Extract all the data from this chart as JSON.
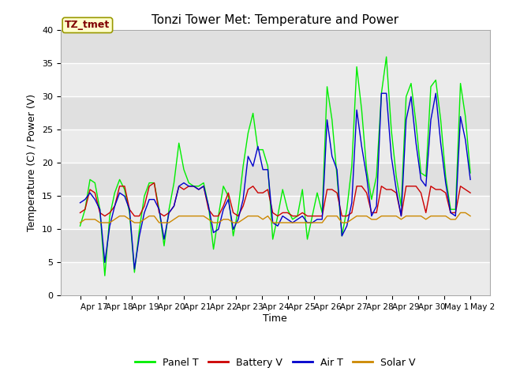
{
  "title": "Tonzi Tower Met: Temperature and Power",
  "xlabel": "Time",
  "ylabel": "Temperature (C) / Power (V)",
  "ylim": [
    0,
    40
  ],
  "yticks": [
    0,
    5,
    10,
    15,
    20,
    25,
    30,
    35,
    40
  ],
  "x_labels": [
    "Apr 17",
    "Apr 18",
    "Apr 19",
    "Apr 20",
    "Apr 21",
    "Apr 22",
    "Apr 23",
    "Apr 24",
    "Apr 25",
    "Apr 26",
    "Apr 27",
    "Apr 28",
    "Apr 29",
    "Apr 30",
    "May 1",
    "May 2"
  ],
  "annotation_text": "TZ_tmet",
  "annotation_color": "#800000",
  "annotation_bg": "#ffffcc",
  "annotation_border": "#999900",
  "bg_color_light": "#e8e8e8",
  "bg_color_dark": "#d8d8d8",
  "legend_entries": [
    "Panel T",
    "Battery V",
    "Air T",
    "Solar V"
  ],
  "legend_colors": [
    "#00ee00",
    "#cc0000",
    "#0000cc",
    "#cc8800"
  ],
  "line_colors": {
    "panel_t": "#00ee00",
    "battery_v": "#cc0000",
    "air_t": "#0000cc",
    "solar_v": "#cc8800"
  },
  "panel_t": [
    10.5,
    13.0,
    17.5,
    17.0,
    13.0,
    3.0,
    12.0,
    15.5,
    17.5,
    16.0,
    12.5,
    3.5,
    10.0,
    15.0,
    17.0,
    17.0,
    13.0,
    7.5,
    13.0,
    17.0,
    23.0,
    19.0,
    17.0,
    16.5,
    16.5,
    17.0,
    13.5,
    7.0,
    12.0,
    16.5,
    15.0,
    9.0,
    13.0,
    19.5,
    24.5,
    27.5,
    22.0,
    22.0,
    19.5,
    8.5,
    12.0,
    16.0,
    13.0,
    11.5,
    12.0,
    16.0,
    8.5,
    12.0,
    15.5,
    12.5,
    31.5,
    26.5,
    18.0,
    9.0,
    13.0,
    19.5,
    34.5,
    28.0,
    19.0,
    14.5,
    18.0,
    30.5,
    36.0,
    25.0,
    18.0,
    13.5,
    30.0,
    32.0,
    26.0,
    18.5,
    18.0,
    31.5,
    32.5,
    26.5,
    18.0,
    13.0,
    13.0,
    32.0,
    27.0,
    18.5
  ],
  "battery_v": [
    12.5,
    13.0,
    16.0,
    15.5,
    12.5,
    12.0,
    12.5,
    13.5,
    16.5,
    16.5,
    13.0,
    12.0,
    12.0,
    13.5,
    16.5,
    17.0,
    12.5,
    12.0,
    12.5,
    13.5,
    16.5,
    16.0,
    16.5,
    16.5,
    16.0,
    16.5,
    13.0,
    12.0,
    12.0,
    13.5,
    15.5,
    12.5,
    12.0,
    13.5,
    16.0,
    16.5,
    15.5,
    15.5,
    16.0,
    12.5,
    12.0,
    12.5,
    12.5,
    12.0,
    12.0,
    12.5,
    12.0,
    12.0,
    12.0,
    12.0,
    16.0,
    16.0,
    15.5,
    12.0,
    12.0,
    12.5,
    16.5,
    16.5,
    15.5,
    12.5,
    12.5,
    16.5,
    16.0,
    16.0,
    15.5,
    12.0,
    16.5,
    16.5,
    16.5,
    15.5,
    12.5,
    16.5,
    16.0,
    16.0,
    15.5,
    12.5,
    12.5,
    16.5,
    16.0,
    15.5
  ],
  "air_t": [
    14.0,
    14.5,
    15.5,
    14.5,
    13.0,
    5.0,
    10.5,
    13.5,
    15.5,
    15.0,
    13.0,
    4.0,
    9.0,
    12.5,
    14.5,
    14.5,
    13.0,
    8.5,
    12.5,
    13.5,
    16.5,
    17.0,
    16.5,
    16.5,
    16.0,
    16.5,
    13.5,
    9.5,
    10.0,
    13.0,
    14.5,
    10.0,
    11.5,
    14.5,
    21.0,
    19.5,
    22.5,
    19.0,
    19.0,
    11.0,
    10.5,
    12.0,
    11.5,
    11.0,
    11.5,
    12.0,
    11.0,
    11.0,
    11.5,
    11.5,
    26.5,
    21.0,
    19.0,
    9.0,
    10.5,
    14.0,
    28.0,
    22.5,
    18.0,
    12.0,
    13.5,
    30.5,
    30.5,
    21.0,
    16.0,
    12.0,
    26.5,
    30.0,
    23.0,
    17.5,
    16.5,
    26.5,
    30.5,
    23.0,
    17.0,
    12.5,
    12.0,
    27.0,
    23.5,
    17.5
  ],
  "solar_v": [
    11.0,
    11.5,
    11.5,
    11.5,
    11.0,
    11.0,
    11.0,
    11.5,
    12.0,
    12.0,
    11.5,
    11.0,
    11.0,
    11.5,
    12.0,
    12.0,
    11.0,
    11.0,
    11.0,
    11.5,
    12.0,
    12.0,
    12.0,
    12.0,
    12.0,
    12.0,
    11.5,
    11.0,
    11.0,
    11.5,
    11.5,
    11.0,
    11.0,
    11.5,
    12.0,
    12.0,
    12.0,
    11.5,
    12.0,
    11.0,
    11.0,
    11.0,
    11.0,
    11.0,
    11.0,
    11.0,
    11.0,
    11.0,
    11.0,
    11.0,
    12.0,
    12.0,
    12.0,
    11.0,
    11.0,
    11.5,
    12.0,
    12.0,
    12.0,
    11.5,
    11.5,
    12.0,
    12.0,
    12.0,
    12.0,
    11.5,
    12.0,
    12.0,
    12.0,
    12.0,
    11.5,
    12.0,
    12.0,
    12.0,
    12.0,
    11.5,
    11.5,
    12.5,
    12.5,
    12.0
  ]
}
